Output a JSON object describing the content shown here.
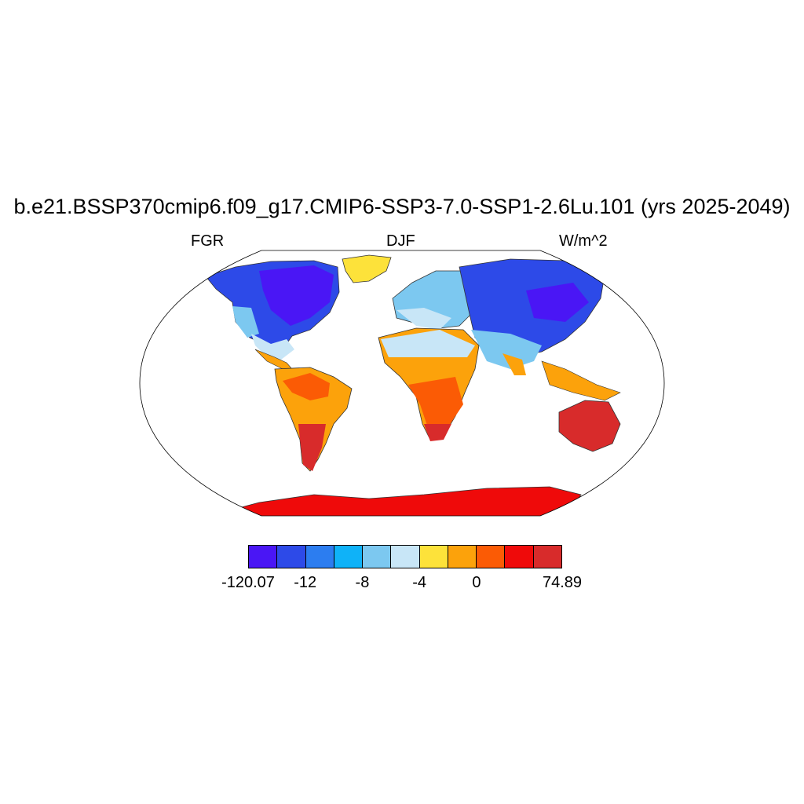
{
  "title": "b.e21.BSSP370cmip6.f09_g17.CMIP6-SSP3-7.0-SSP1-2.6Lu.101 (yrs 2025-2049)",
  "left_label": "FGR",
  "center_label": "DJF",
  "right_label": "W/m^2",
  "colorbar": {
    "colors": [
      "#4a16f5",
      "#2d4ae8",
      "#2c7df0",
      "#0fb2f8",
      "#7cc8f0",
      "#c8e6f7",
      "#fde23a",
      "#fca20b",
      "#fb5b05",
      "#ef0a0a",
      "#d82b2b"
    ],
    "tick_labels": [
      "-120.07",
      "-12",
      "-8",
      "-4",
      "0",
      "74.89"
    ]
  }
}
